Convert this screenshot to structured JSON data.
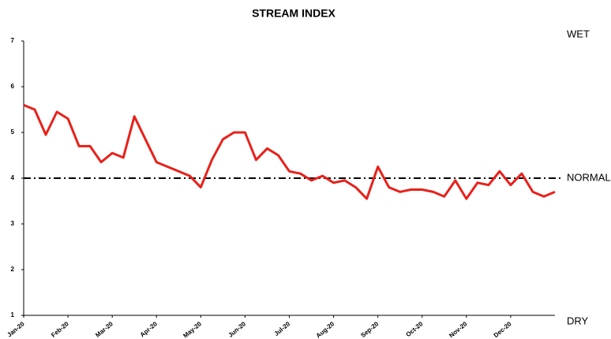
{
  "chart_data": {
    "type": "line",
    "title": "STREAM INDEX",
    "categories": [
      "Jan-20",
      null,
      null,
      null,
      "Feb-20",
      null,
      null,
      null,
      "Mar-20",
      null,
      null,
      null,
      "Apr-20",
      null,
      null,
      null,
      "May-20",
      null,
      null,
      null,
      "Jun-20",
      null,
      null,
      null,
      "Jul-20",
      null,
      null,
      null,
      "Aug-20",
      null,
      null,
      null,
      "Sep-20",
      null,
      null,
      null,
      "Oct-20",
      null,
      null,
      null,
      "Nov-20",
      null,
      null,
      null,
      "Dec-20",
      null,
      null,
      null,
      null
    ],
    "series": [
      {
        "name": "Stream index",
        "color": "#e8211b",
        "values": [
          5.6,
          5.5,
          4.95,
          5.45,
          5.3,
          4.7,
          4.7,
          4.35,
          4.55,
          4.45,
          5.35,
          4.85,
          4.35,
          4.25,
          4.15,
          4.05,
          3.8,
          4.4,
          4.85,
          5.0,
          5.0,
          4.4,
          4.65,
          4.5,
          4.15,
          4.1,
          3.95,
          4.05,
          3.9,
          3.95,
          3.8,
          3.55,
          4.25,
          3.8,
          3.7,
          3.75,
          3.75,
          3.7,
          3.6,
          3.95,
          3.55,
          3.9,
          3.85,
          4.15,
          3.85,
          4.1,
          3.7,
          3.6,
          3.7
        ]
      }
    ],
    "ylim": [
      1,
      7
    ],
    "yticks": [
      1,
      2,
      3,
      4,
      5,
      6,
      7
    ],
    "reference_line": 4,
    "annotations": [
      {
        "text": "WET",
        "value": 7
      },
      {
        "text": "NORMAL",
        "value": 4
      },
      {
        "text": "DRY",
        "value": 1
      }
    ]
  }
}
